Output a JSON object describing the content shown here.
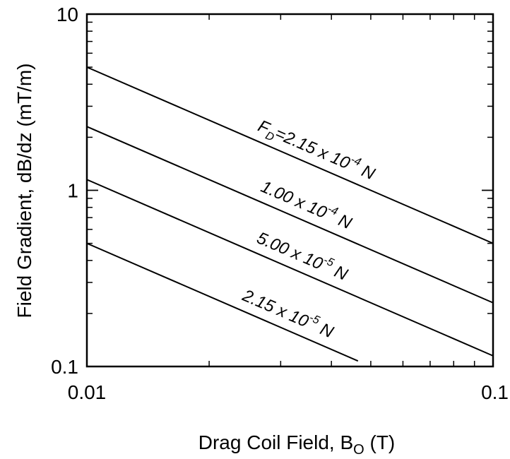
{
  "chart_data": {
    "type": "line",
    "xlabel": "Drag Coil Field, B",
    "xlabel_sub": "O",
    "xlabel_suffix": " (T)",
    "ylabel": "Field Gradient, dB/dz (mT/m)",
    "x_scale": "log",
    "y_scale": "log",
    "xlim": [
      0.01,
      0.1
    ],
    "ylim": [
      0.1,
      10
    ],
    "x_ticks": [
      {
        "value": 0.01,
        "label": "0.01"
      },
      {
        "value": 0.1,
        "label": "0.1"
      }
    ],
    "y_ticks": [
      {
        "value": 0.1,
        "label": "0.1"
      },
      {
        "value": 1,
        "label": "1"
      },
      {
        "value": 10,
        "label": "10"
      }
    ],
    "grid": false,
    "series": [
      {
        "name": "F_D=2.15 x 10^-4 N",
        "label_prefix": "F",
        "label_prefix_sub": "D",
        "label_mantissa": "=2.15 x 10",
        "label_exp": "-4",
        "label_unit": " N",
        "x": [
          0.01,
          0.1
        ],
        "y": [
          5.0,
          0.5
        ]
      },
      {
        "name": "1.00 x 10^-4 N",
        "label_prefix": "",
        "label_prefix_sub": "",
        "label_mantissa": "1.00 x 10",
        "label_exp": "-4",
        "label_unit": " N",
        "x": [
          0.01,
          0.1
        ],
        "y": [
          2.3,
          0.23
        ]
      },
      {
        "name": "5.00 x 10^-5 N",
        "label_prefix": "",
        "label_prefix_sub": "",
        "label_mantissa": "5.00 x 10",
        "label_exp": "-5",
        "label_unit": " N",
        "x": [
          0.01,
          0.1
        ],
        "y": [
          1.15,
          0.115
        ]
      },
      {
        "name": "2.15 x 10^-5 N",
        "label_prefix": "",
        "label_prefix_sub": "",
        "label_mantissa": "2.15 x 10",
        "label_exp": "-5",
        "label_unit": " N",
        "x": [
          0.01,
          0.0465
        ],
        "y": [
          0.5,
          0.1075
        ]
      }
    ]
  }
}
